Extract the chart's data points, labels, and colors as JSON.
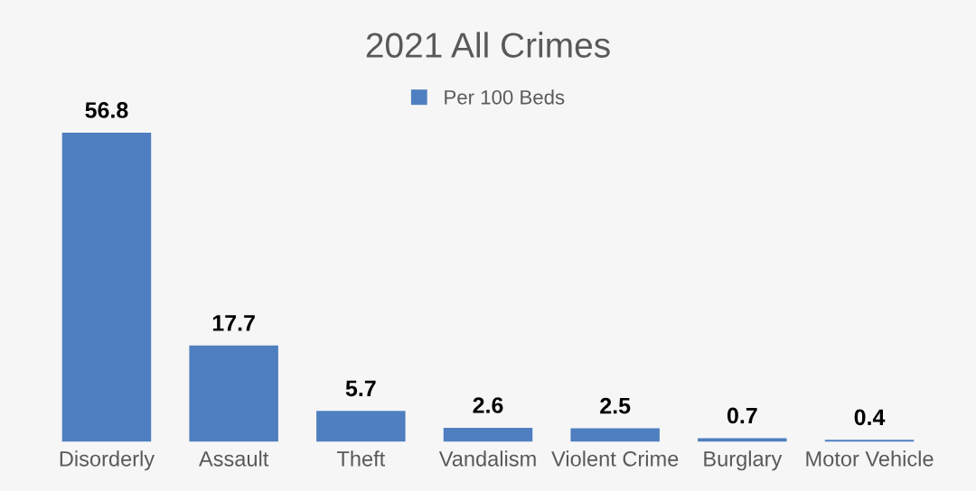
{
  "chart_data": {
    "type": "bar",
    "title": "2021 All Crimes",
    "categories": [
      "Disorderly",
      "Assault",
      "Theft",
      "Vandalism",
      "Violent Crime",
      "Burglary",
      "Motor Vehicle"
    ],
    "series": [
      {
        "name": "Per 100 Beds",
        "color": "#4f7fc0",
        "values": [
          56.8,
          17.7,
          5.7,
          2.6,
          2.5,
          0.7,
          0.4
        ]
      }
    ],
    "data_labels": true,
    "legend": "top",
    "grid": false
  }
}
